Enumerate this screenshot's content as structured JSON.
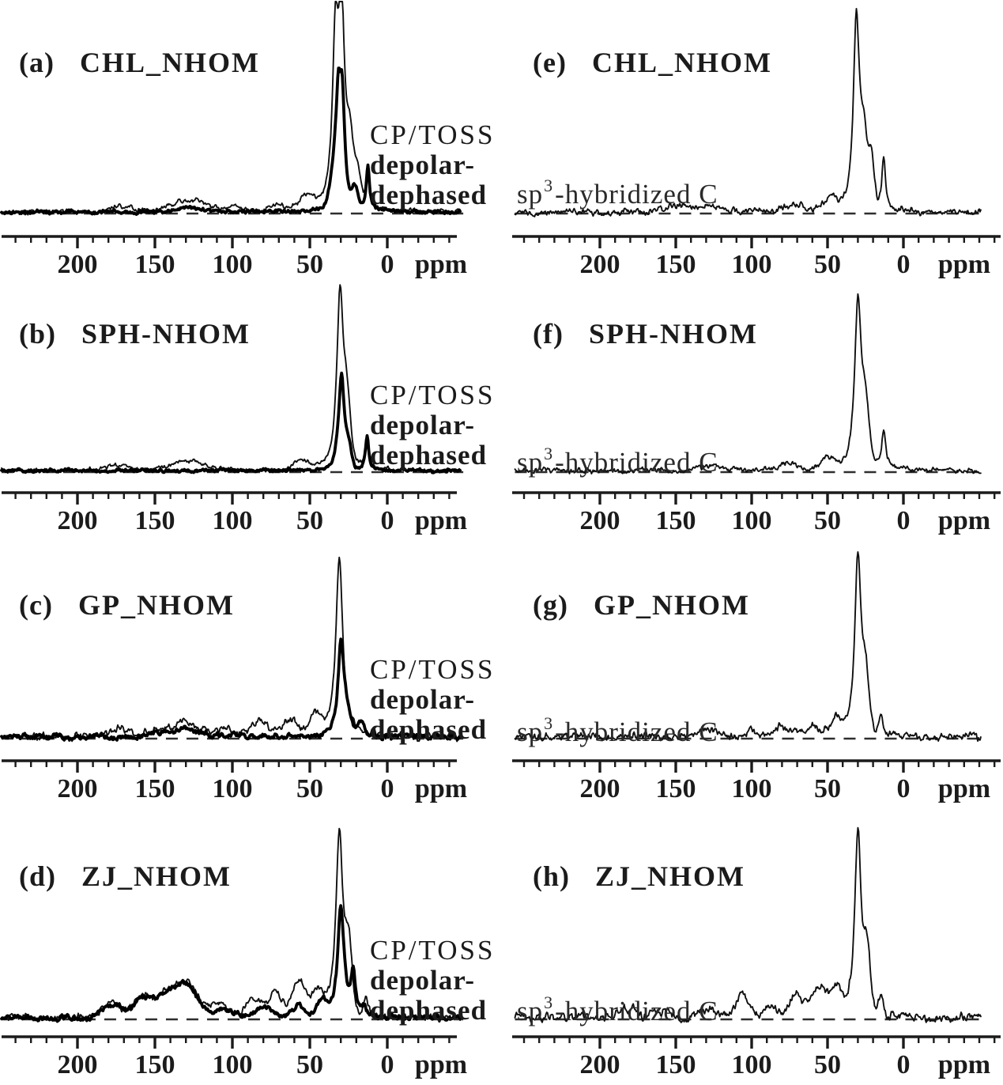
{
  "figure": {
    "background": "#ffffff",
    "ink_color": "#1b1b1b",
    "description_labels": {
      "cp_toss": "CP/TOSS",
      "dephased_1": "depolar-",
      "dephased_2": "dephased",
      "sp3_base": "sp",
      "sp3_sup": "3",
      "sp3_rest": "-hybridized C"
    }
  },
  "chart_data": [
    {
      "id": "a",
      "type": "line",
      "panel_label": "(a)",
      "title": "CHL_NHOM",
      "column": "left",
      "row": 0,
      "annotations": [
        "CP/TOSS",
        "depolar-",
        "dephased"
      ],
      "x_axis": {
        "unit": "ppm",
        "major_ticks": [
          200,
          150,
          100,
          50,
          0
        ],
        "minor_tick_step": 10,
        "visible_range_ppm": [
          250,
          -47
        ],
        "inverted": true
      },
      "baseline_dashed": true,
      "series": [
        {
          "name": "CP/TOSS",
          "weight": "thin",
          "seed": 3,
          "noise": 0.012,
          "wobble": 0.01,
          "peaks": [
            [
              "g",
              172,
              0.03,
              9
            ],
            [
              "g",
              128,
              0.055,
              16
            ],
            [
              "g",
              98,
              0.02,
              8
            ],
            [
              "g",
              70,
              0.03,
              9
            ],
            [
              "g",
              52,
              0.06,
              7
            ],
            [
              "l",
              33.5,
              0.78,
              2.2
            ],
            [
              "l",
              29.5,
              0.95,
              2.4
            ],
            [
              "g",
              24,
              0.28,
              3
            ],
            [
              "g",
              19,
              0.16,
              2.5
            ],
            [
              "l",
              12.5,
              0.2,
              1.4
            ]
          ]
        },
        {
          "name": "depolar-dephased",
          "weight": "thick",
          "seed": 17,
          "noise": 0.009,
          "wobble": 0.006,
          "peaks": [
            [
              "g",
              128,
              0.022,
              14
            ],
            [
              "g",
              33,
              0.2,
              4.5
            ],
            [
              "l",
              31.5,
              0.35,
              1.8
            ],
            [
              "l",
              29,
              0.45,
              1.9
            ],
            [
              "g",
              21,
              0.1,
              2.5
            ],
            [
              "l",
              12.5,
              0.22,
              1.3
            ]
          ]
        }
      ]
    },
    {
      "id": "b",
      "type": "line",
      "panel_label": "(b)",
      "title": "SPH-NHOM",
      "column": "left",
      "row": 1,
      "annotations": [
        "CP/TOSS",
        "depolar-",
        "dephased"
      ],
      "x_axis": {
        "unit": "ppm",
        "major_ticks": [
          200,
          150,
          100,
          50,
          0
        ],
        "minor_tick_step": 10,
        "visible_range_ppm": [
          250,
          -47
        ],
        "inverted": true
      },
      "baseline_dashed": true,
      "series": [
        {
          "name": "CP/TOSS",
          "weight": "thin",
          "seed": 41,
          "noise": 0.011,
          "wobble": 0.008,
          "peaks": [
            [
              "g",
              172,
              0.03,
              9
            ],
            [
              "g",
              128,
              0.05,
              15
            ],
            [
              "g",
              55,
              0.045,
              7
            ],
            [
              "l",
              30.5,
              0.93,
              2.5
            ],
            [
              "g",
              26,
              0.28,
              3
            ],
            [
              "l",
              13,
              0.16,
              1.3
            ]
          ]
        },
        {
          "name": "depolar-dephased",
          "weight": "thick",
          "seed": 53,
          "noise": 0.008,
          "wobble": 0.005,
          "peaks": [
            [
              "g",
              30,
              0.12,
              4
            ],
            [
              "l",
              29.5,
              0.38,
              1.9
            ],
            [
              "g",
              25,
              0.1,
              2.5
            ],
            [
              "l",
              13,
              0.18,
              1.2
            ]
          ]
        }
      ]
    },
    {
      "id": "c",
      "type": "line",
      "panel_label": "(c)",
      "title": "GP_NHOM",
      "column": "left",
      "row": 2,
      "annotations": [
        "CP/TOSS",
        "depolar-",
        "dephased"
      ],
      "x_axis": {
        "unit": "ppm",
        "major_ticks": [
          200,
          150,
          100,
          50,
          0
        ],
        "minor_tick_step": 10,
        "visible_range_ppm": [
          250,
          -47
        ],
        "inverted": true
      },
      "baseline_dashed": true,
      "series": [
        {
          "name": "CP/TOSS",
          "weight": "thin",
          "seed": 71,
          "noise": 0.02,
          "wobble": 0.015,
          "peaks": [
            [
              "g",
              172,
              0.05,
              8
            ],
            [
              "g",
              150,
              0.03,
              8
            ],
            [
              "g",
              130,
              0.075,
              13
            ],
            [
              "g",
              106,
              0.045,
              8
            ],
            [
              "g",
              82,
              0.075,
              9
            ],
            [
              "g",
              63,
              0.08,
              7
            ],
            [
              "g",
              47,
              0.1,
              6
            ],
            [
              "l",
              31,
              0.95,
              2.7
            ]
          ]
        },
        {
          "name": "depolar-dephased",
          "weight": "thick",
          "seed": 83,
          "noise": 0.014,
          "wobble": 0.01,
          "peaks": [
            [
              "g",
              150,
              0.02,
              8
            ],
            [
              "g",
              130,
              0.04,
              12
            ],
            [
              "g",
              100,
              0.02,
              8
            ],
            [
              "l",
              30,
              0.46,
              2.3
            ],
            [
              "g",
              27,
              0.1,
              4
            ],
            [
              "g",
              17,
              0.07,
              3
            ]
          ]
        }
      ]
    },
    {
      "id": "d",
      "type": "line",
      "panel_label": "(d)",
      "title": "ZJ_NHOM",
      "column": "left",
      "row": 3,
      "annotations": [
        "CP/TOSS",
        "depolar-",
        "dephased"
      ],
      "x_axis": {
        "unit": "ppm",
        "major_ticks": [
          200,
          150,
          100,
          50,
          0
        ],
        "minor_tick_step": 10,
        "visible_range_ppm": [
          250,
          -47
        ],
        "inverted": true
      },
      "baseline_dashed": true,
      "series": [
        {
          "name": "CP/TOSS",
          "weight": "thin",
          "seed": 101,
          "noise": 0.018,
          "wobble": 0.014,
          "peaks": [
            [
              "g",
              178,
              0.08,
              9
            ],
            [
              "g",
              158,
              0.1,
              9
            ],
            [
              "g",
              140,
              0.14,
              11
            ],
            [
              "g",
              127,
              0.13,
              9
            ],
            [
              "g",
              108,
              0.07,
              8
            ],
            [
              "g",
              86,
              0.1,
              7
            ],
            [
              "g",
              72,
              0.13,
              6
            ],
            [
              "g",
              57,
              0.19,
              6
            ],
            [
              "g",
              45,
              0.13,
              5
            ],
            [
              "l",
              31,
              0.95,
              2.7
            ],
            [
              "g",
              25,
              0.3,
              3
            ],
            [
              "g",
              14,
              0.08,
              2
            ]
          ]
        },
        {
          "name": "depolar-dephased",
          "weight": "thick",
          "seed": 113,
          "noise": 0.013,
          "wobble": 0.01,
          "peaks": [
            [
              "g",
              178,
              0.07,
              9
            ],
            [
              "g",
              158,
              0.1,
              9
            ],
            [
              "g",
              140,
              0.14,
              11
            ],
            [
              "g",
              127,
              0.12,
              9
            ],
            [
              "g",
              106,
              0.05,
              8
            ],
            [
              "g",
              80,
              0.05,
              8
            ],
            [
              "g",
              58,
              0.06,
              6
            ],
            [
              "g",
              42,
              0.07,
              5
            ],
            [
              "l",
              30,
              0.55,
              2.5
            ],
            [
              "l",
              22,
              0.22,
              1.7
            ],
            [
              "g",
              15,
              0.05,
              2
            ]
          ]
        }
      ]
    },
    {
      "id": "e",
      "type": "line",
      "panel_label": "(e)",
      "title": "CHL_NHOM",
      "column": "right",
      "row": 0,
      "annotation_parts": {
        "base": "sp",
        "sup": "3",
        "rest": "-hybridized C"
      },
      "x_axis": {
        "unit": "ppm",
        "major_ticks": [
          200,
          150,
          100,
          50,
          0
        ],
        "minor_tick_step": 10,
        "visible_range_ppm": [
          256,
          -51
        ],
        "inverted": true
      },
      "baseline_dashed": true,
      "series": [
        {
          "name": "sp3-hybridized C",
          "weight": "thin",
          "seed": 29,
          "noise": 0.016,
          "wobble": 0.012,
          "peaks": [
            [
              "g",
              150,
              0.022,
              9
            ],
            [
              "g",
              128,
              0.035,
              13
            ],
            [
              "g",
              98,
              0.02,
              7
            ],
            [
              "g",
              72,
              0.03,
              8
            ],
            [
              "g",
              48,
              0.07,
              6
            ],
            [
              "l",
              31,
              0.98,
              2.3
            ],
            [
              "g",
              26,
              0.32,
              3
            ],
            [
              "g",
              21,
              0.22,
              2.6
            ],
            [
              "l",
              13,
              0.26,
              1.5
            ]
          ]
        }
      ]
    },
    {
      "id": "f",
      "type": "line",
      "panel_label": "(f)",
      "title": "SPH-NHOM",
      "column": "right",
      "row": 1,
      "annotation_parts": {
        "base": "sp",
        "sup": "3",
        "rest": "-hybridized C"
      },
      "x_axis": {
        "unit": "ppm",
        "major_ticks": [
          200,
          150,
          100,
          50,
          0
        ],
        "minor_tick_step": 10,
        "visible_range_ppm": [
          256,
          -51
        ],
        "inverted": true
      },
      "baseline_dashed": true,
      "series": [
        {
          "name": "sp3-hybridized C",
          "weight": "thin",
          "seed": 67,
          "noise": 0.013,
          "wobble": 0.01,
          "peaks": [
            [
              "g",
              128,
              0.025,
              12
            ],
            [
              "g",
              75,
              0.04,
              8
            ],
            [
              "g",
              50,
              0.06,
              6
            ],
            [
              "l",
              30,
              0.88,
              2.6
            ],
            [
              "g",
              25,
              0.28,
              3.2
            ],
            [
              "l",
              13,
              0.2,
              1.5
            ]
          ]
        }
      ]
    },
    {
      "id": "g",
      "type": "line",
      "panel_label": "(g)",
      "title": "GP_NHOM",
      "column": "right",
      "row": 2,
      "annotation_parts": {
        "base": "sp",
        "sup": "3",
        "rest": "-hybridized C"
      },
      "x_axis": {
        "unit": "ppm",
        "major_ticks": [
          200,
          150,
          100,
          50,
          0
        ],
        "minor_tick_step": 10,
        "visible_range_ppm": [
          256,
          -51
        ],
        "inverted": true
      },
      "baseline_dashed": true,
      "series": [
        {
          "name": "sp3-hybridized C",
          "weight": "thin",
          "seed": 97,
          "noise": 0.02,
          "wobble": 0.014,
          "peaks": [
            [
              "g",
              130,
              0.035,
              12
            ],
            [
              "g",
              100,
              0.03,
              8
            ],
            [
              "g",
              80,
              0.05,
              8
            ],
            [
              "g",
              60,
              0.05,
              7
            ],
            [
              "g",
              45,
              0.08,
              5
            ],
            [
              "l",
              30,
              0.97,
              2.5
            ],
            [
              "g",
              25,
              0.26,
              3
            ],
            [
              "g",
              15,
              0.09,
              2
            ]
          ]
        }
      ]
    },
    {
      "id": "h",
      "type": "line",
      "panel_label": "(h)",
      "title": "ZJ_NHOM",
      "column": "right",
      "row": 3,
      "annotation_parts": {
        "base": "sp",
        "sup": "3",
        "rest": "-hybridized C"
      },
      "x_axis": {
        "unit": "ppm",
        "major_ticks": [
          200,
          150,
          100,
          50,
          0
        ],
        "minor_tick_step": 10,
        "visible_range_ppm": [
          256,
          -51
        ],
        "inverted": true
      },
      "baseline_dashed": true,
      "series": [
        {
          "name": "sp3-hybridized C",
          "weight": "thin",
          "seed": 127,
          "noise": 0.022,
          "wobble": 0.015,
          "peaks": [
            [
              "g",
              182,
              0.05,
              7
            ],
            [
              "g",
              160,
              0.03,
              8
            ],
            [
              "g",
              128,
              0.04,
              9
            ],
            [
              "g",
              106,
              0.11,
              6
            ],
            [
              "g",
              88,
              0.06,
              6
            ],
            [
              "g",
              70,
              0.11,
              7
            ],
            [
              "g",
              55,
              0.16,
              6
            ],
            [
              "g",
              44,
              0.15,
              5
            ],
            [
              "l",
              30,
              0.95,
              2.5
            ],
            [
              "g",
              24,
              0.3,
              3
            ],
            [
              "g",
              15,
              0.1,
              2
            ]
          ]
        }
      ]
    }
  ]
}
